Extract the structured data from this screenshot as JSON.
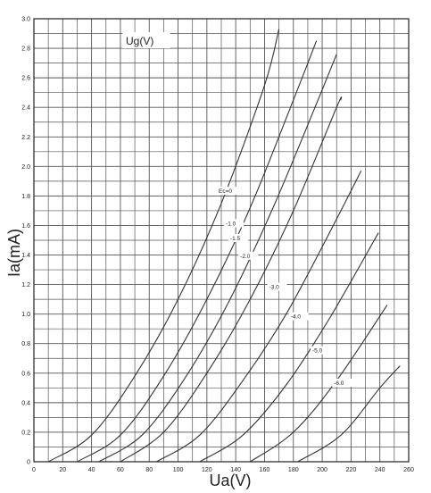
{
  "chart_data": {
    "type": "line",
    "legend_title": "Ug(V)",
    "xlabel": "Ua(V)",
    "ylabel": "Ia(mA)",
    "xlim": [
      0,
      260
    ],
    "ylim": [
      0,
      3.0
    ],
    "x_ticks": [
      "0",
      "20",
      "40",
      "60",
      "80",
      "100",
      "120",
      "140",
      "160",
      "180",
      "200",
      "220",
      "240",
      "260"
    ],
    "y_ticks": [
      "0",
      "0.2",
      "0.4",
      "0.6",
      "0.8",
      "1.0",
      "1.2",
      "1.4",
      "1.6",
      "1.8",
      "2.0",
      "2.2",
      "2.4",
      "2.6",
      "2.8",
      "3.0"
    ],
    "grid": true,
    "series": [
      {
        "name": "Ec=0",
        "x": [
          10,
          40,
          70,
          100,
          130,
          160,
          170
        ],
        "y": [
          0.0,
          0.18,
          0.58,
          1.1,
          1.75,
          2.55,
          2.93
        ]
      },
      {
        "name": "-1.0",
        "x": [
          30,
          60,
          90,
          120,
          150,
          180,
          196
        ],
        "y": [
          0.0,
          0.18,
          0.58,
          1.1,
          1.72,
          2.45,
          2.85
        ]
      },
      {
        "name": "-1.5",
        "x": [
          45,
          75,
          105,
          135,
          165,
          195,
          210
        ],
        "y": [
          0.0,
          0.18,
          0.57,
          1.08,
          1.7,
          2.4,
          2.76
        ]
      },
      {
        "name": "-2.0",
        "x": [
          60,
          90,
          120,
          150,
          180,
          210,
          213
        ],
        "y": [
          0.0,
          0.2,
          0.6,
          1.1,
          1.7,
          2.4,
          2.45
        ]
      },
      {
        "name": "-3.0",
        "x": [
          85,
          115,
          145,
          175,
          205,
          227
        ],
        "y": [
          0.0,
          0.18,
          0.55,
          1.0,
          1.55,
          1.97
        ]
      },
      {
        "name": "-4.0",
        "x": [
          115,
          145,
          175,
          205,
          239
        ],
        "y": [
          0.0,
          0.18,
          0.52,
          0.97,
          1.55
        ]
      },
      {
        "name": "-5.0",
        "x": [
          150,
          180,
          210,
          245
        ],
        "y": [
          0.0,
          0.2,
          0.55,
          1.06
        ]
      },
      {
        "name": "-6.0",
        "x": [
          183,
          213,
          240,
          254
        ],
        "y": [
          0.0,
          0.18,
          0.5,
          0.65
        ]
      }
    ]
  }
}
